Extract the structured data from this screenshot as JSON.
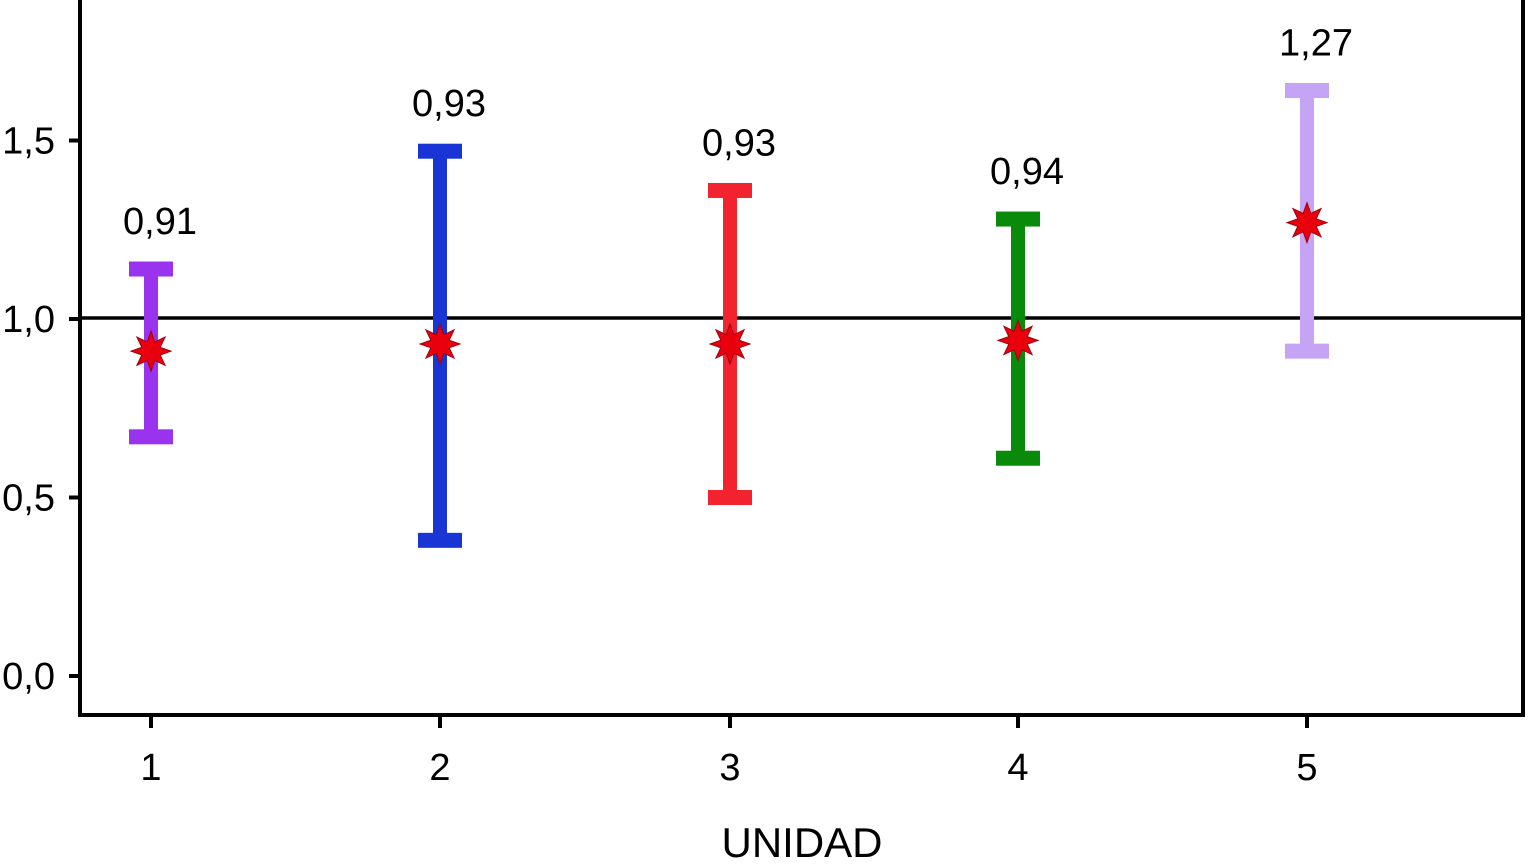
{
  "chart_data": {
    "type": "errorbar",
    "title": "",
    "xlabel": "UNIDAD",
    "ylabel": "",
    "categories": [
      "1",
      "2",
      "3",
      "4",
      "5"
    ],
    "yticks": [
      {
        "value": 0.0,
        "label": "0,0"
      },
      {
        "value": 0.5,
        "label": "0,5"
      },
      {
        "value": 1.0,
        "label": "1,0"
      },
      {
        "value": 1.5,
        "label": "1,5"
      }
    ],
    "ylim": [
      -0.11,
      1.89
    ],
    "reference_line": 1.0,
    "grid": false,
    "legend": null,
    "marker": "8-point-star",
    "marker_color": "#e8000d",
    "series": [
      {
        "name": "1",
        "value": 0.91,
        "label": "0,91",
        "lower": 0.67,
        "upper": 1.14,
        "color": "#9933ee"
      },
      {
        "name": "2",
        "value": 0.93,
        "label": "0,93",
        "lower": 0.38,
        "upper": 1.47,
        "color": "#1a35d6"
      },
      {
        "name": "3",
        "value": 0.93,
        "label": "0,93",
        "lower": 0.5,
        "upper": 1.36,
        "color": "#f2222f"
      },
      {
        "name": "4",
        "value": 0.94,
        "label": "0,94",
        "lower": 0.61,
        "upper": 1.28,
        "color": "#0a8a0a"
      },
      {
        "name": "5",
        "value": 1.27,
        "label": "1,27",
        "lower": 0.91,
        "upper": 1.64,
        "color": "#c5a3f5"
      }
    ]
  }
}
